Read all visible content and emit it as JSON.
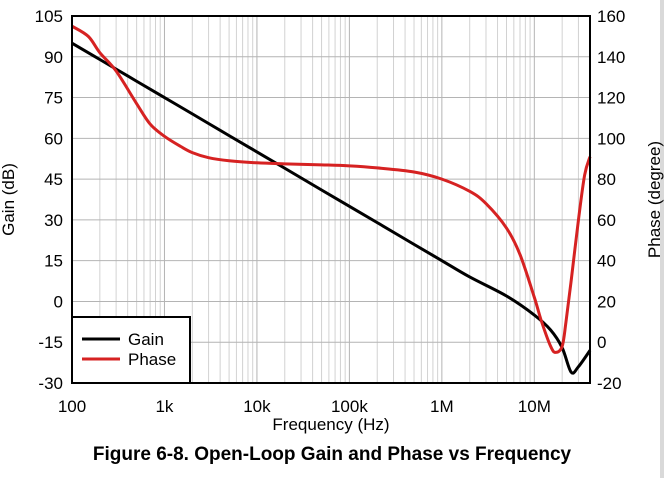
{
  "caption": "Figure 6-8. Open-Loop Gain and Phase vs Frequency",
  "chart_data": {
    "type": "line",
    "title": "Figure 6-8. Open-Loop Gain and Phase vs Frequency",
    "xlabel": "Frequency (Hz)",
    "ylabel": "Gain (dB)",
    "y2label": "Phase (degree)",
    "xscale": "log",
    "xlim": [
      100,
      40000000
    ],
    "ylim": [
      -30,
      105
    ],
    "y2lim": [
      -20,
      160
    ],
    "grid": true,
    "legend_position": "bottom-left",
    "x_ticks": [
      {
        "value": 100,
        "label": "100"
      },
      {
        "value": 1000,
        "label": "1k"
      },
      {
        "value": 10000,
        "label": "10k"
      },
      {
        "value": 100000,
        "label": "100k"
      },
      {
        "value": 1000000,
        "label": "1M"
      },
      {
        "value": 10000000,
        "label": "10M"
      }
    ],
    "y_ticks": [
      {
        "value": 105,
        "label": "105"
      },
      {
        "value": 90,
        "label": "90"
      },
      {
        "value": 75,
        "label": "75"
      },
      {
        "value": 60,
        "label": "60"
      },
      {
        "value": 45,
        "label": "45"
      },
      {
        "value": 30,
        "label": "30"
      },
      {
        "value": 15,
        "label": "15"
      },
      {
        "value": 0,
        "label": "0"
      },
      {
        "value": -15,
        "label": "-15"
      },
      {
        "value": -30,
        "label": "-30"
      }
    ],
    "y2_ticks": [
      {
        "value": 160,
        "label": "160"
      },
      {
        "value": 140,
        "label": "140"
      },
      {
        "value": 120,
        "label": "120"
      },
      {
        "value": 100,
        "label": "100"
      },
      {
        "value": 80,
        "label": "80"
      },
      {
        "value": 60,
        "label": "60"
      },
      {
        "value": 40,
        "label": "40"
      },
      {
        "value": 20,
        "label": "20"
      },
      {
        "value": 0,
        "label": "0"
      },
      {
        "value": -20,
        "label": "-20"
      }
    ],
    "series": [
      {
        "name": "Gain",
        "axis": "left",
        "color": "#000000",
        "x": [
          100,
          200,
          500,
          1000,
          2000,
          5000,
          10000,
          20000,
          50000,
          100000,
          200000,
          500000,
          1000000,
          2000000,
          5000000,
          10000000,
          15000000,
          20000000,
          25000000,
          30000000,
          40000000
        ],
        "y": [
          95,
          89,
          81,
          75,
          69,
          61,
          55,
          49,
          41,
          35,
          29,
          21,
          15,
          9,
          2,
          -5,
          -10.5,
          -17,
          -26,
          -24,
          -18
        ]
      },
      {
        "name": "Phase",
        "axis": "right",
        "color": "#d62222",
        "x": [
          100,
          150,
          200,
          300,
          500,
          700,
          1000,
          1500,
          2000,
          3000,
          5000,
          10000,
          20000,
          50000,
          100000,
          200000,
          500000,
          1000000,
          2000000,
          3000000,
          5000000,
          7000000,
          10000000,
          12000000,
          15000000,
          17000000,
          20000000,
          22000000,
          25000000,
          30000000,
          35000000,
          40000000
        ],
        "y": [
          155,
          150,
          142,
          133,
          117,
          107,
          101,
          96,
          93,
          90.5,
          89,
          88,
          87.5,
          87,
          86.5,
          85.5,
          83.5,
          80,
          74,
          68,
          56,
          43,
          22,
          10,
          -2,
          -5,
          -2,
          10,
          30,
          60,
          82,
          91
        ]
      }
    ]
  }
}
